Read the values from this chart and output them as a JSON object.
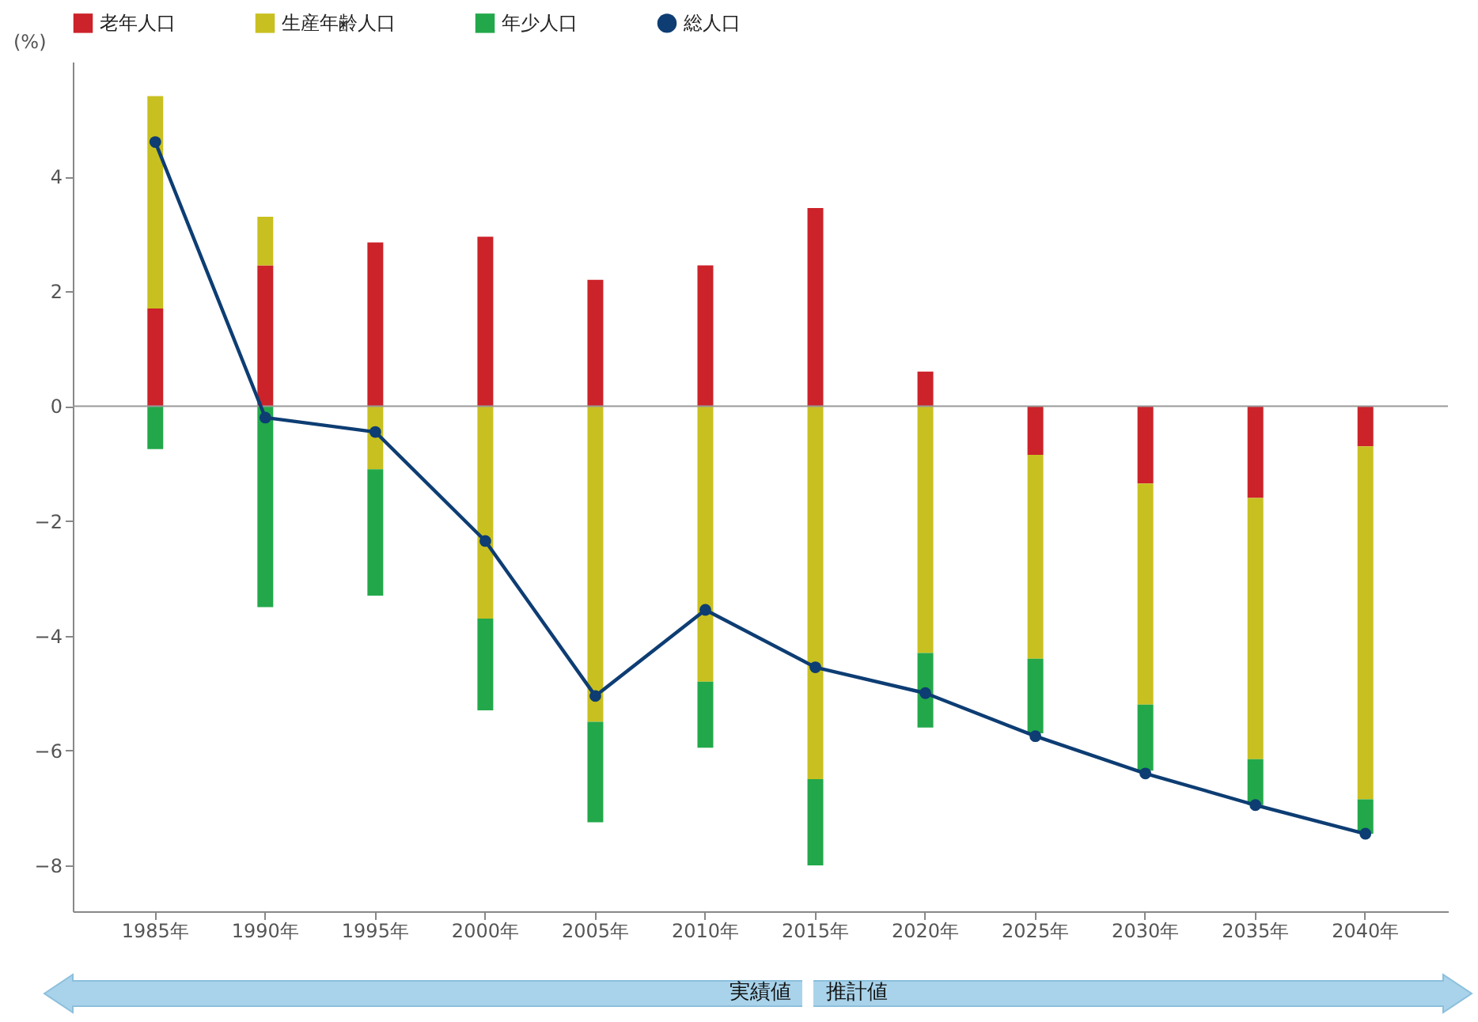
{
  "chart_data": {
    "type": "bar",
    "stacked": true,
    "ylabel": "(%)",
    "categories": [
      "1985年",
      "1990年",
      "1995年",
      "2000年",
      "2005年",
      "2010年",
      "2015年",
      "2020年",
      "2025年",
      "2030年",
      "2035年",
      "2040年"
    ],
    "series": [
      {
        "name": "老年人口",
        "color": "#cc2229",
        "values": [
          1.7,
          2.45,
          2.85,
          2.95,
          2.2,
          2.45,
          3.45,
          0.6,
          -0.85,
          -1.35,
          -1.6,
          -0.7
        ]
      },
      {
        "name": "生産年齢人口",
        "color": "#c8c020",
        "values": [
          3.7,
          0.85,
          -1.1,
          -3.7,
          -5.5,
          -4.8,
          -6.5,
          -4.3,
          -3.55,
          -3.85,
          -4.55,
          -6.15
        ]
      },
      {
        "name": "年少人口",
        "color": "#22a84a",
        "values": [
          -0.75,
          -3.5,
          -2.2,
          -1.6,
          -1.75,
          -1.15,
          -1.5,
          -1.3,
          -1.3,
          -1.15,
          -0.8,
          -0.6
        ]
      },
      {
        "name": "総人口",
        "type": "line",
        "color": "#0d3d73",
        "marker": "circle",
        "values": [
          4.6,
          -0.2,
          -0.45,
          -2.35,
          -5.05,
          -3.55,
          -4.55,
          -5.0,
          -5.75,
          -6.4,
          -6.95,
          -7.45
        ]
      }
    ],
    "ylim": [
      -8.8,
      6
    ],
    "yticks": [
      -8,
      -6,
      -4,
      -2,
      0,
      2,
      4
    ],
    "ref_lines": [
      {
        "axis": "y",
        "value": 0,
        "color": "#999999"
      }
    ],
    "legend": "top",
    "grid": false,
    "annotations": [
      "実績値",
      "推計値"
    ]
  }
}
